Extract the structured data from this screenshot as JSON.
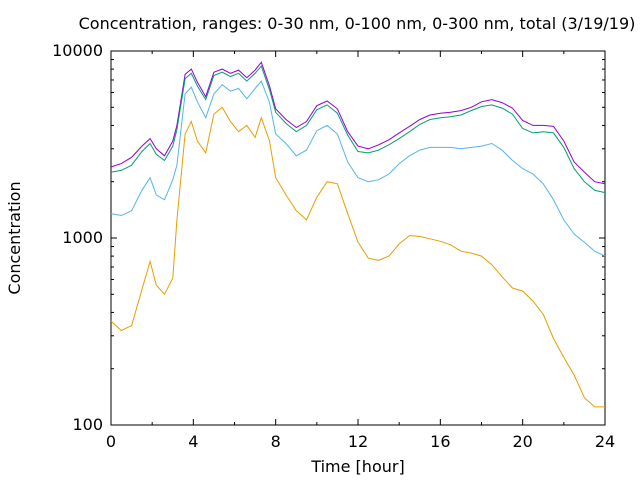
{
  "chart_data": {
    "type": "line",
    "title": "Concentration, ranges: 0-30 nm, 0-100 nm, 0-300 nm, total (3/19/19)",
    "xlabel": "Time [hour]",
    "ylabel": "Concentration",
    "xlim": [
      0,
      24
    ],
    "ylim": [
      100,
      10000
    ],
    "yscale": "log",
    "xticks": [
      0,
      4,
      8,
      12,
      16,
      20,
      24
    ],
    "xtick_labels": [
      "0",
      "4",
      "8",
      "12",
      "16",
      "20",
      "24"
    ],
    "yticks": [
      100,
      1000,
      10000
    ],
    "ytick_labels": [
      "100",
      "1000",
      "10000"
    ],
    "grid": false,
    "series": [
      {
        "color": "#9400d3",
        "x": [
          0,
          0.5,
          1.0,
          1.5,
          1.9,
          2.2,
          2.6,
          3.0,
          3.2,
          3.6,
          3.9,
          4.2,
          4.6,
          5.0,
          5.4,
          5.8,
          6.2,
          6.6,
          7.0,
          7.3,
          7.7,
          8.0,
          8.5,
          9.0,
          9.5,
          10.0,
          10.5,
          11.0,
          11.5,
          12.0,
          12.5,
          13.0,
          13.5,
          14.0,
          14.5,
          15.0,
          15.5,
          16.0,
          16.5,
          17.0,
          17.5,
          18.0,
          18.5,
          19.0,
          19.5,
          20.0,
          20.5,
          21.0,
          21.5,
          22.0,
          22.5,
          23.0,
          23.5,
          24.0
        ],
        "values": [
          2400,
          2500,
          2700,
          3100,
          3400,
          3000,
          2750,
          3300,
          4000,
          7500,
          8000,
          6800,
          5700,
          7700,
          8000,
          7600,
          7900,
          7200,
          7900,
          8700,
          6500,
          4900,
          4300,
          3900,
          4200,
          5100,
          5400,
          4900,
          3700,
          3100,
          3000,
          3150,
          3350,
          3650,
          3950,
          4300,
          4550,
          4650,
          4700,
          4800,
          5000,
          5350,
          5500,
          5300,
          4950,
          4250,
          4000,
          4000,
          3950,
          3300,
          2550,
          2250,
          2000,
          1950
        ]
      },
      {
        "color": "#009e73",
        "x": [
          0,
          0.5,
          1.0,
          1.5,
          1.9,
          2.2,
          2.6,
          3.0,
          3.2,
          3.6,
          3.9,
          4.2,
          4.6,
          5.0,
          5.4,
          5.8,
          6.2,
          6.6,
          7.0,
          7.3,
          7.7,
          8.0,
          8.5,
          9.0,
          9.5,
          10.0,
          10.5,
          11.0,
          11.5,
          12.0,
          12.5,
          13.0,
          13.5,
          14.0,
          14.5,
          15.0,
          15.5,
          16.0,
          16.5,
          17.0,
          17.5,
          18.0,
          18.5,
          19.0,
          19.5,
          20.0,
          20.5,
          21.0,
          21.5,
          22.0,
          22.5,
          23.0,
          23.5,
          24.0
        ],
        "values": [
          2250,
          2300,
          2450,
          2900,
          3200,
          2800,
          2600,
          3100,
          3800,
          7100,
          7600,
          6500,
          5500,
          7400,
          7700,
          7300,
          7600,
          6900,
          7600,
          8300,
          6200,
          4700,
          4100,
          3700,
          4000,
          4850,
          5150,
          4650,
          3550,
          2900,
          2850,
          2950,
          3150,
          3400,
          3700,
          4050,
          4300,
          4400,
          4450,
          4550,
          4800,
          5050,
          5150,
          4950,
          4600,
          3850,
          3650,
          3700,
          3650,
          3050,
          2350,
          2000,
          1800,
          1750
        ]
      },
      {
        "color": "#56b4e9",
        "x": [
          0,
          0.5,
          1.0,
          1.5,
          1.9,
          2.2,
          2.6,
          3.0,
          3.2,
          3.6,
          3.9,
          4.2,
          4.6,
          5.0,
          5.4,
          5.8,
          6.2,
          6.6,
          7.0,
          7.3,
          7.7,
          8.0,
          8.5,
          9.0,
          9.5,
          10.0,
          10.5,
          11.0,
          11.5,
          12.0,
          12.5,
          13.0,
          13.5,
          14.0,
          14.5,
          15.0,
          15.5,
          16.0,
          16.5,
          17.0,
          17.5,
          18.0,
          18.5,
          19.0,
          19.5,
          20.0,
          20.5,
          21.0,
          21.5,
          22.0,
          22.5,
          23.0,
          23.5,
          24.0
        ],
        "values": [
          1350,
          1320,
          1400,
          1800,
          2100,
          1700,
          1600,
          2050,
          2450,
          5900,
          6400,
          5350,
          4400,
          5900,
          6600,
          6100,
          6300,
          5550,
          6300,
          6900,
          5300,
          3600,
          3200,
          2750,
          2950,
          3750,
          4000,
          3600,
          2550,
          2100,
          2000,
          2050,
          2200,
          2500,
          2750,
          2950,
          3050,
          3050,
          3050,
          3000,
          3050,
          3100,
          3200,
          2950,
          2600,
          2350,
          2200,
          1950,
          1600,
          1250,
          1050,
          950,
          850,
          800
        ]
      },
      {
        "color": "#e69f00",
        "x": [
          0,
          0.5,
          1.0,
          1.5,
          1.9,
          2.2,
          2.6,
          3.0,
          3.2,
          3.6,
          3.9,
          4.2,
          4.6,
          5.0,
          5.4,
          5.8,
          6.2,
          6.6,
          7.0,
          7.3,
          7.7,
          8.0,
          8.5,
          9.0,
          9.5,
          10.0,
          10.5,
          11.0,
          11.5,
          12.0,
          12.5,
          13.0,
          13.5,
          14.0,
          14.5,
          15.0,
          15.5,
          16.0,
          16.5,
          17.0,
          17.5,
          18.0,
          18.5,
          19.0,
          19.5,
          20.0,
          20.5,
          21.0,
          21.5,
          22.0,
          22.5,
          23.0,
          23.5,
          24.0
        ],
        "values": [
          360,
          320,
          340,
          530,
          750,
          560,
          500,
          610,
          1250,
          3600,
          4200,
          3300,
          2850,
          4600,
          5000,
          4200,
          3700,
          4000,
          3450,
          4400,
          3300,
          2100,
          1700,
          1400,
          1250,
          1650,
          2000,
          1950,
          1350,
          950,
          780,
          760,
          800,
          930,
          1030,
          1020,
          990,
          960,
          920,
          850,
          830,
          800,
          720,
          620,
          540,
          520,
          460,
          390,
          290,
          230,
          185,
          140,
          125,
          125
        ]
      }
    ]
  }
}
